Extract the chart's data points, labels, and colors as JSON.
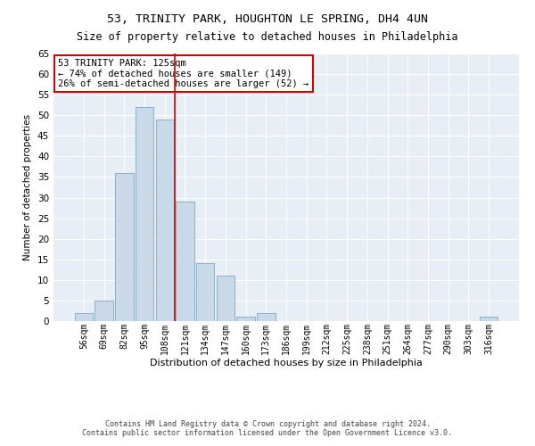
{
  "title": "53, TRINITY PARK, HOUGHTON LE SPRING, DH4 4UN",
  "subtitle": "Size of property relative to detached houses in Philadelphia",
  "xlabel": "Distribution of detached houses by size in Philadelphia",
  "ylabel": "Number of detached properties",
  "categories": [
    "56sqm",
    "69sqm",
    "82sqm",
    "95sqm",
    "108sqm",
    "121sqm",
    "134sqm",
    "147sqm",
    "160sqm",
    "173sqm",
    "186sqm",
    "199sqm",
    "212sqm",
    "225sqm",
    "238sqm",
    "251sqm",
    "264sqm",
    "277sqm",
    "290sqm",
    "303sqm",
    "316sqm"
  ],
  "values": [
    2,
    5,
    36,
    52,
    49,
    29,
    14,
    11,
    1,
    2,
    0,
    0,
    0,
    0,
    0,
    0,
    0,
    0,
    0,
    0,
    1
  ],
  "bar_color": "#c9d9e8",
  "bar_edge_color": "#8ab0c8",
  "vline_x_idx": 4.5,
  "vline_color": "#cc0000",
  "ylim": [
    0,
    65
  ],
  "yticks": [
    0,
    5,
    10,
    15,
    20,
    25,
    30,
    35,
    40,
    45,
    50,
    55,
    60,
    65
  ],
  "annotation_title": "53 TRINITY PARK: 125sqm",
  "annotation_line1": "← 74% of detached houses are smaller (149)",
  "annotation_line2": "26% of semi-detached houses are larger (52) →",
  "annotation_box_color": "#ffffff",
  "annotation_box_edge": "#cc0000",
  "bg_color": "#e8eef5",
  "footer1": "Contains HM Land Registry data © Crown copyright and database right 2024.",
  "footer2": "Contains public sector information licensed under the Open Government Licence v3.0."
}
